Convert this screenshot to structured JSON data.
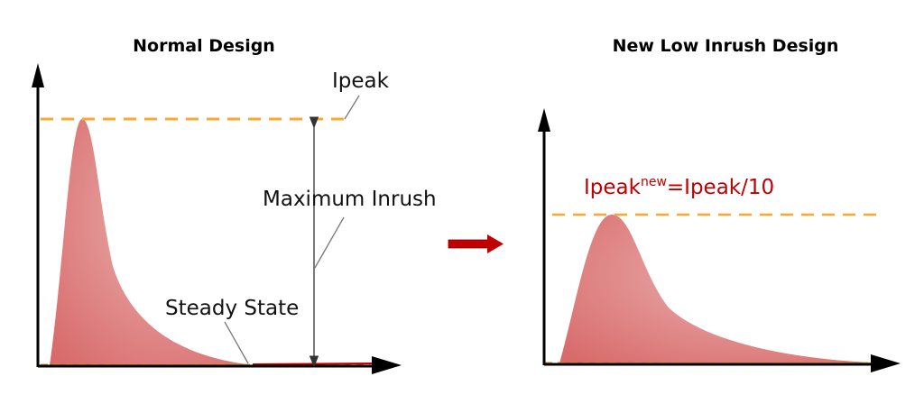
{
  "left_panel": {
    "title": "Normal Design",
    "peak_label": "Ipeak",
    "max_inrush_label": "Maximum Inrush",
    "steady_state_label": "Steady State"
  },
  "right_panel": {
    "title": "New Low Inrush Design",
    "peak_label_main": "Ipeak",
    "peak_label_sup": "new",
    "peak_label_rest": "=Ipeak/10"
  },
  "colors": {
    "curve_fill": "#dd7a7a",
    "dashed_line": "#ffa530",
    "arrow": "#c00000",
    "red_text": "#c00000"
  }
}
